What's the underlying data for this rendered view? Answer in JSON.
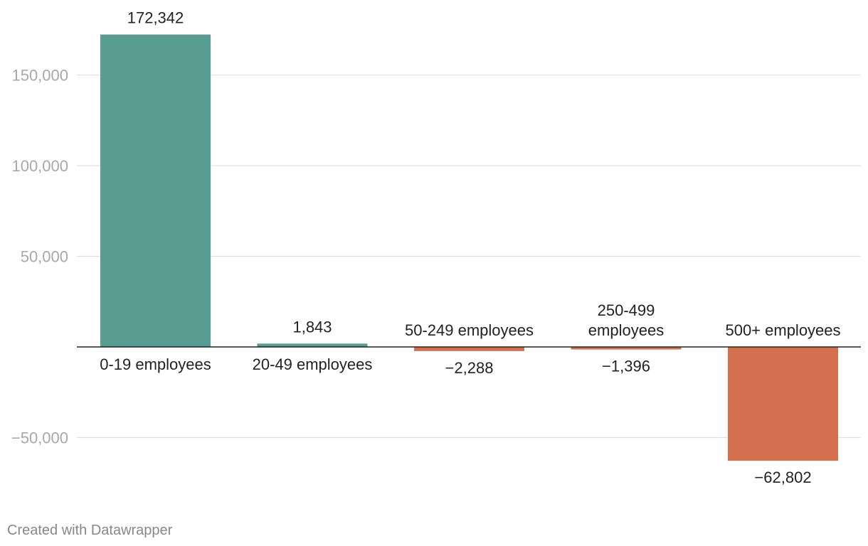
{
  "chart_data": {
    "type": "bar",
    "categories": [
      "0-19 employees",
      "20-49 employees",
      "50-249 employees",
      "250-499 employees",
      "500+ employees"
    ],
    "category_label_lines": [
      [
        "0-19 employees"
      ],
      [
        "20-49 employees"
      ],
      [
        "50-249 employees"
      ],
      [
        "250-499",
        "employees"
      ],
      [
        "500+ employees"
      ]
    ],
    "values": [
      172342,
      1843,
      -2288,
      -1396,
      -62802
    ],
    "value_labels": [
      "172,342",
      "1,843",
      "−2,288",
      "−1,396",
      "−62,802"
    ],
    "yticks": [
      150000,
      100000,
      50000,
      -50000
    ],
    "ytick_labels": [
      "150,000",
      "100,000",
      "50,000",
      "−50,000"
    ],
    "grid": true,
    "colors": {
      "positive": "#589d91",
      "negative": "#d4704d"
    }
  },
  "footer": {
    "credit": "Created with Datawrapper"
  }
}
